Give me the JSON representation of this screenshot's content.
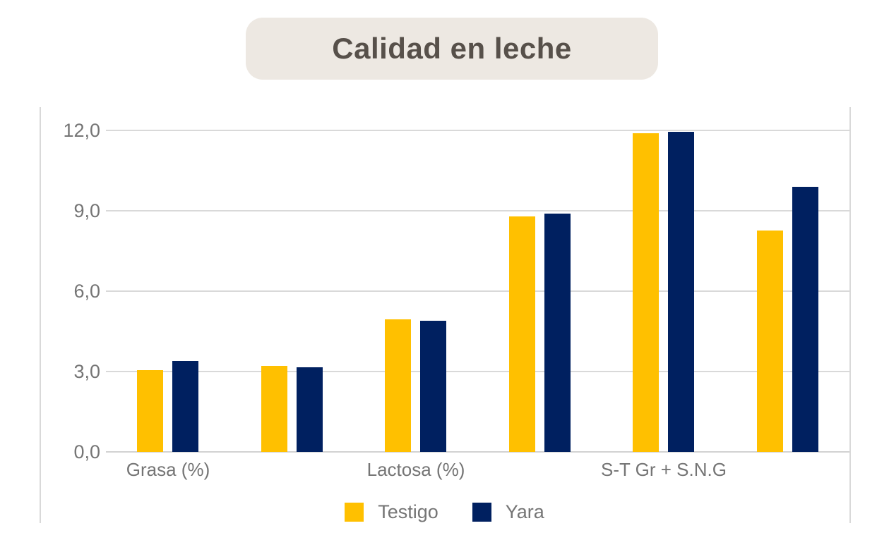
{
  "title": {
    "text": "Calidad en leche"
  },
  "chart_data": {
    "type": "bar",
    "title": "Calidad en leche",
    "xlabel": "",
    "ylabel": "",
    "categories": [
      "Grasa (%)",
      "",
      "Lactosa (%)",
      "",
      "S-T Gr + S.N.G",
      ""
    ],
    "series": [
      {
        "name": "Testigo",
        "color": "#FFC000",
        "values": [
          3.05,
          3.2,
          4.95,
          8.8,
          11.9,
          8.25
        ]
      },
      {
        "name": "Yara",
        "color": "#002060",
        "values": [
          3.4,
          3.15,
          4.9,
          8.9,
          11.95,
          9.9
        ]
      }
    ],
    "ylim": [
      0,
      12
    ],
    "yticks": [
      {
        "value": 0,
        "label": "0,0"
      },
      {
        "value": 3,
        "label": "3,0"
      },
      {
        "value": 6,
        "label": "6,0"
      },
      {
        "value": 9,
        "label": "9,0"
      },
      {
        "value": 12,
        "label": "12,0"
      }
    ],
    "grid": true,
    "legend_position": "bottom"
  },
  "legend": {
    "items": [
      "Testigo",
      "Yara"
    ]
  },
  "colors": {
    "testigo": "#FFC000",
    "yara": "#002060",
    "gridline": "#D9D9D9",
    "baseline": "#D2D2D2",
    "plot_border": "#D9D9D9",
    "axis_text": "#757575",
    "title_text": "#57504A",
    "title_bg": "#EDE8E2",
    "background": "#FFFFFF"
  }
}
